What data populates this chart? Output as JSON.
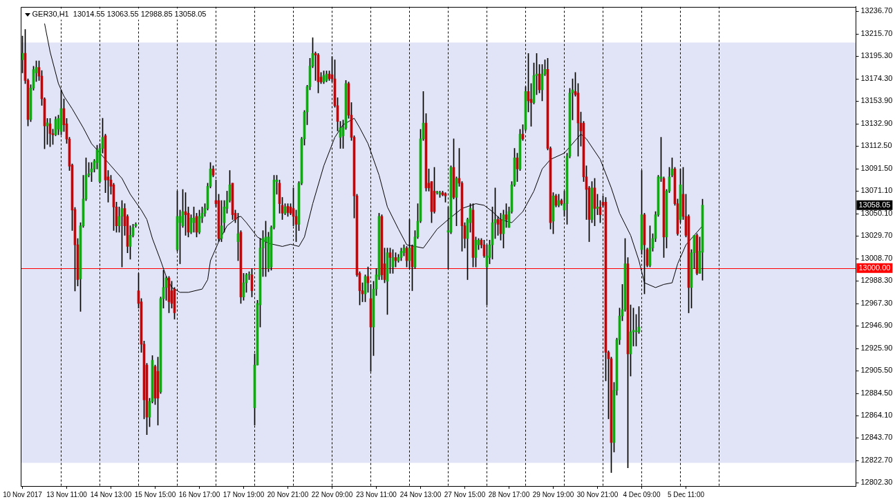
{
  "chart_data": {
    "type": "candlestick",
    "title": "GER30,H1  13014.55 13063.55 12988.85 13058.05",
    "categories": [
      "10 Nov 2017",
      null,
      null,
      null,
      null,
      null,
      null,
      null,
      null,
      null,
      null,
      null,
      null,
      null,
      null,
      null,
      "13 Nov 11:00",
      null,
      null,
      null,
      null,
      null,
      null,
      null,
      null,
      null,
      null,
      null,
      null,
      null,
      null,
      null,
      "14 Nov 13:00",
      null,
      null,
      null,
      null,
      null,
      null,
      null,
      null,
      null,
      null,
      null,
      null,
      null,
      null,
      null,
      "15 Nov 15:00",
      null,
      null,
      null,
      null,
      null,
      null,
      null,
      null,
      null,
      null,
      null,
      null,
      null,
      null,
      null,
      "16 Nov 17:00",
      null,
      null,
      null,
      null,
      null,
      null,
      null,
      null,
      null,
      null,
      null,
      null,
      null,
      null,
      null,
      "17 Nov 19:00",
      null,
      null,
      null,
      null,
      null,
      null,
      null,
      null,
      null,
      null,
      null,
      null,
      null,
      null,
      null,
      "20 Nov 21:00",
      null,
      null,
      null,
      null,
      null,
      null,
      null,
      null,
      null,
      null,
      null,
      null,
      null,
      null,
      null,
      "22 Nov 09:00",
      null,
      null,
      null,
      null,
      null,
      null,
      null,
      null,
      null,
      null,
      null,
      null,
      null,
      null,
      null,
      "23 Nov 11:00",
      null,
      null,
      null,
      null,
      null,
      null,
      null,
      null,
      null,
      null,
      null,
      null,
      null,
      null,
      null,
      "24 Nov 13:00",
      null,
      null,
      null,
      null,
      null,
      null,
      null,
      null,
      null,
      null,
      null,
      null,
      null,
      null,
      null,
      "27 Nov 15:00",
      null,
      null,
      null,
      null,
      null,
      null,
      null,
      null,
      null,
      null,
      null,
      null,
      null,
      null,
      null,
      "28 Nov 17:00",
      null,
      null,
      null,
      null,
      null,
      null,
      null,
      null,
      null,
      null,
      null,
      null,
      null,
      null,
      null,
      "29 Nov 19:00",
      null,
      null,
      null,
      null,
      null,
      null,
      null,
      null,
      null,
      null,
      null,
      null,
      null,
      null,
      null,
      "30 Nov 21:00",
      null,
      null,
      null,
      null,
      null,
      null,
      null,
      null,
      null,
      null,
      null,
      null,
      null,
      null,
      null,
      "4 Dec 09:00",
      null,
      null,
      null,
      null,
      null,
      null,
      null,
      null,
      null,
      null,
      null,
      null,
      null,
      null,
      null,
      "5 Dec 11:00",
      null,
      null,
      null,
      null,
      null,
      null,
      null,
      null,
      null,
      null,
      null,
      null,
      null,
      null,
      null,
      null,
      null,
      null,
      null,
      null,
      null,
      null,
      null,
      null,
      null,
      null,
      null,
      null,
      null,
      null,
      null,
      null,
      null,
      null,
      null,
      null,
      null,
      null,
      null,
      null,
      null,
      null,
      null,
      null,
      null,
      null,
      null,
      null,
      null,
      null,
      null,
      null,
      null,
      null,
      null,
      null,
      null,
      null,
      null,
      null,
      null
    ],
    "ohlc": [
      [
        13192,
        13214,
        13180,
        13198
      ],
      [
        13198,
        13220,
        13170,
        13173
      ],
      [
        13173,
        13174.5,
        13131,
        13137
      ],
      [
        13137,
        13169,
        13135,
        13166
      ],
      [
        13166,
        13186,
        13164,
        13183
      ],
      [
        13180,
        13191,
        13172,
        13185
      ],
      [
        13185,
        13191,
        13173,
        13177
      ],
      [
        13177,
        13182,
        13150,
        13156
      ],
      [
        13156,
        13157,
        13110,
        13131
      ],
      [
        13131,
        13138,
        13114,
        13134
      ],
      [
        13133,
        13138,
        13112,
        13124
      ],
      [
        13124,
        13128,
        13114,
        13123
      ],
      [
        13123,
        13139.5,
        13122,
        13137
      ],
      [
        13128,
        13141,
        13123,
        13138
      ],
      [
        13126,
        13164,
        13123,
        13147
      ],
      [
        13147,
        13156,
        13126,
        13132
      ],
      [
        13133,
        13138,
        13115,
        13119
      ],
      [
        13119,
        13120.6,
        13090,
        13094
      ],
      [
        13095,
        13096,
        13034.6,
        13053.5
      ],
      [
        13054,
        13056,
        12979,
        13021.5
      ],
      [
        13021.5,
        13027.3,
        12983.6,
        12989.4
      ],
      [
        12990,
        13041.9,
        12960.2,
        13039
      ],
      [
        13039,
        13085.6,
        13037.5,
        13063.7
      ],
      [
        13063.7,
        13101.6,
        13062.3,
        13085.6
      ],
      [
        13085.6,
        13097.3,
        13084.1,
        13087
      ],
      [
        13088.5,
        13097.3,
        13079.8,
        13091.4
      ],
      [
        13091.4,
        13100.2,
        13088.5,
        13098.7
      ],
      [
        13097.3,
        13113.3,
        13091.4,
        13108.9
      ],
      [
        13079.8,
        13114.7,
        13078.3,
        13110.4
      ],
      [
        13110.4,
        13138.1,
        13106,
        13120.6
      ],
      [
        13122,
        13123.5,
        13069.6,
        13081.2
      ],
      [
        13084.1,
        13090,
        13060.8,
        13081.2
      ],
      [
        13081.2,
        13085.6,
        13068.1,
        13075.4
      ],
      [
        13076.8,
        13078.3,
        13034.6,
        13056.4
      ],
      [
        13056.4,
        13060.8,
        13033.1,
        13039
      ],
      [
        13039,
        13056.4,
        13033.1,
        13047.7
      ],
      [
        13047.7,
        13062.3,
        13001.1,
        13055
      ],
      [
        13055,
        13059.4,
        13030.2,
        13039
      ],
      [
        13047.7,
        13049.2,
        13014.2,
        13020
      ],
      [
        13020,
        13039,
        13008.3,
        13030.2
      ],
      [
        13030.2,
        13040.4,
        13028.7,
        13037.5
      ],
      [
        13039,
        13041.9,
        13037.5,
        13040.4
      ],
      [
        12979.2,
        12995.2,
        12963.2,
        12967.5
      ],
      [
        12969,
        12971.9,
        12922.4,
        12929.9
      ],
      [
        12929.9,
        12932.8,
        12861.1,
        12878.6
      ],
      [
        12910.7,
        12912.2,
        12846.6,
        12862.6
      ],
      [
        12862.6,
        12880.1,
        12853.9,
        12877.2
      ],
      [
        12877.2,
        12919.4,
        12875.7,
        12915.1
      ],
      [
        12909.3,
        12910.7,
        12874.2,
        12880.1
      ],
      [
        12904.9,
        12918,
        12855.4,
        12880.1
      ],
      [
        12885.9,
        12973.4,
        12884.5,
        12971.9
      ],
      [
        12971.9,
        12998.1,
        12963.2,
        12982.1
      ],
      [
        12982.1,
        12992.3,
        12970.4,
        12990.9
      ],
      [
        12990.9,
        12992.3,
        12958.8,
        12969
      ],
      [
        12979.2,
        12987.9,
        12963.2,
        12967.5
      ],
      [
        12980.7,
        12982.1,
        12953,
        12958.8
      ],
      [
        13017.1,
        13071,
        13015.6,
        13047.7
      ],
      [
        13041.9,
        13053.5,
        13004,
        13047.7
      ],
      [
        13039,
        13072.5,
        13037.5,
        13052.1
      ],
      [
        13052.1,
        13069.6,
        13030.2,
        13049.2
      ],
      [
        13050.6,
        13056.4,
        13028.7,
        13033.1
      ],
      [
        13033.1,
        13049.2,
        13031.7,
        13046.2
      ],
      [
        13041.9,
        13056.4,
        13033.1,
        13046.2
      ],
      [
        13047.7,
        13050.6,
        13028.7,
        13033.1
      ],
      [
        13033.1,
        13053.5,
        13031.7,
        13047.7
      ],
      [
        13046.2,
        13056.4,
        13041.9,
        13050.6
      ],
      [
        13050.6,
        13059.4,
        13047.7,
        13055
      ],
      [
        13055,
        13078.3,
        13053.5,
        13075.4
      ],
      [
        13075.4,
        13097.3,
        13073.9,
        13091.4
      ],
      [
        13091.4,
        13094.3,
        13084.1,
        13085.6
      ],
      [
        13062.3,
        13081.2,
        13056.4,
        13059.4
      ],
      [
        13062.3,
        13068.1,
        13024.4,
        13027.3
      ],
      [
        13027.3,
        13062.3,
        13024.4,
        13039
      ],
      [
        13041.9,
        13062.3,
        13033.1,
        13056.4
      ],
      [
        13055,
        13071,
        13050.6,
        13062.3
      ],
      [
        13062.3,
        13090,
        13060.8,
        13076.8
      ],
      [
        13078.3,
        13078.3,
        13044.8,
        13049.2
      ],
      [
        13050.6,
        13053.5,
        13041.9,
        13044.8
      ],
      [
        13024.4,
        13050.6,
        13006.9,
        13031.7
      ],
      [
        13033.1,
        13034.6,
        12967.5,
        12973.4
      ],
      [
        12973.4,
        12995.2,
        12970.4,
        12986.5
      ],
      [
        12986.5,
        12995.2,
        12977.7,
        12993.8
      ],
      [
        12993.8,
        12996.7,
        12989.4,
        12993.8
      ],
      [
        12993.8,
        12999.6,
        12973.4,
        12979.2
      ],
      [
        12871.3,
        12920.9,
        12855.4,
        12910.7
      ],
      [
        12910.7,
        12970.4,
        12910.7,
        12967.5
      ],
      [
        12966.1,
        13027.3,
        12945.7,
        13018.5
      ],
      [
        13018.5,
        13034.6,
        12992.3,
        13027.3
      ],
      [
        13024.4,
        13043.3,
        12992.3,
        13028.7
      ],
      [
        12999.6,
        13033.1,
        12996.7,
        13028.7
      ],
      [
        13001.1,
        13039,
        12998.1,
        13037.5
      ],
      [
        13037.5,
        13085.6,
        13036,
        13081.2
      ],
      [
        13079.8,
        13085.6,
        13068.1,
        13081.2
      ],
      [
        13078.3,
        13081.2,
        13050.6,
        13059.4
      ],
      [
        13057.9,
        13065.2,
        13044.8,
        13050.6
      ],
      [
        13050.6,
        13059.4,
        13049.2,
        13056.4
      ],
      [
        13057,
        13059.4,
        13047.7,
        13051.2
      ],
      [
        13056.4,
        13059.4,
        13049.2,
        13050.6
      ],
      [
        13055,
        13073.9,
        13039,
        13047.7
      ],
      [
        13047.7,
        13053.5,
        13024.4,
        13040.4
      ],
      [
        13040.4,
        13079.8,
        13034.6,
        13078.3
      ],
      [
        13078.3,
        13120.6,
        13076.8,
        13119.1
      ],
      [
        13119.1,
        13145.3,
        13113.3,
        13143.9
      ],
      [
        13143.9,
        13168.6,
        13132.2,
        13167.2
      ],
      [
        13167.2,
        13193.4,
        13164.3,
        13186.2
      ],
      [
        13186.2,
        13212.4,
        13184.7,
        13197.8
      ],
      [
        13197.8,
        13199.3,
        13173,
        13196.4
      ],
      [
        13196.4,
        13197.8,
        13161.4,
        13171.6
      ],
      [
        13176,
        13180.3,
        13170.1,
        13171.6
      ],
      [
        13171.6,
        13181.8,
        13170.1,
        13177.4
      ],
      [
        13173,
        13181.8,
        13171.6,
        13178.9
      ],
      [
        13178.9,
        13181.8,
        13173,
        13174.5
      ],
      [
        13178.3,
        13194.9,
        13171.6,
        13174.5
      ],
      [
        13174.5,
        13192,
        13148.3,
        13149.7
      ],
      [
        13149.7,
        13157,
        13126.4,
        13135.2
      ],
      [
        13120.6,
        13135.2,
        13110.4,
        13129.3
      ],
      [
        13122,
        13136.6,
        13110.4,
        13129.3
      ],
      [
        13129.3,
        13173,
        13127.9,
        13170.1
      ],
      [
        13170.1,
        13171.6,
        13138.1,
        13141
      ],
      [
        13141,
        13152.6,
        13117.7,
        13120.6
      ],
      [
        13120.6,
        13122,
        13046.2,
        13066.6
      ],
      [
        13066.6,
        13068.1,
        12992.3,
        12993.8
      ],
      [
        12995.2,
        12996.7,
        12966.1,
        12979.2
      ],
      [
        12979.2,
        12986.5,
        12969,
        12976.3
      ],
      [
        12976.3,
        12993.8,
        12969,
        12992.3
      ],
      [
        12992.3,
        13001.1,
        12977.7,
        12986.5
      ],
      [
        12971.9,
        12985,
        12904.9,
        12945.7
      ],
      [
        12945.7,
        12987.9,
        12919.4,
        12980.7
      ],
      [
        12980.7,
        12999.6,
        12974.8,
        12993.8
      ],
      [
        12992.3,
        13050.6,
        12989.4,
        13047.7
      ],
      [
        13047.7,
        13049.2,
        12989.4,
        12993.8
      ],
      [
        13004,
        13018.5,
        12986.5,
        12989.4
      ],
      [
        12987.9,
        13018.5,
        12957.3,
        13014.2
      ],
      [
        13014.2,
        13018.5,
        12995.2,
        13009.8
      ],
      [
        13001.1,
        13017.1,
        12995.2,
        13009.8
      ],
      [
        13009.8,
        13014.2,
        13001.1,
        13006.9
      ],
      [
        13006.9,
        13012.7,
        13005.4,
        13009.8
      ],
      [
        13009.8,
        13018.5,
        13006.9,
        13015.6
      ],
      [
        13014.2,
        13021.5,
        13011.3,
        13018.5
      ],
      [
        13018.5,
        13020,
        13001.1,
        13006.9
      ],
      [
        13006.9,
        13044.8,
        12999.6,
        13018.5
      ],
      [
        13020,
        13021.5,
        12979.2,
        13001.1
      ],
      [
        13001.1,
        13034.6,
        12999.6,
        13028.7
      ],
      [
        13028.7,
        13059.4,
        13027.3,
        13043.3
      ],
      [
        13043.3,
        13127.9,
        13041.9,
        13119.1
      ],
      [
        13119.1,
        13162.8,
        13117.7,
        13133.7
      ],
      [
        13133.7,
        13142.4,
        13071,
        13073.9
      ],
      [
        13078.3,
        13091.4,
        13071,
        13073.9
      ],
      [
        13079.8,
        13079.8,
        13041.9,
        13052.1
      ],
      [
        13071,
        13092.9,
        13050.6,
        13052.1
      ],
      [
        13069.6,
        13071,
        13068.1,
        13070.4
      ],
      [
        13068.1,
        13071,
        13065.2,
        13069.3
      ],
      [
        13069.6,
        13071,
        13066.6,
        13067.5
      ],
      [
        13068.7,
        13069.6,
        13060.8,
        13066.6
      ],
      [
        13033.1,
        13056.4,
        12999.6,
        13034.6
      ],
      [
        13033.1,
        13094.3,
        13031.7,
        13092.9
      ],
      [
        13092.9,
        13119.1,
        13063.7,
        13065.2
      ],
      [
        13065.2,
        13084.1,
        13039,
        13082.7
      ],
      [
        13082.7,
        13110.4,
        13075.4,
        13078.3
      ],
      [
        13078.3,
        13079.8,
        13015.6,
        13039
      ],
      [
        13039,
        13041.9,
        13018.5,
        13027.3
      ],
      [
        13027.3,
        13046.2,
        12989.4,
        13044.8
      ],
      [
        13041.9,
        13059.4,
        13033.1,
        13055
      ],
      [
        13053.5,
        13059.4,
        13001.1,
        13009.8
      ],
      [
        13009.8,
        13028.7,
        13001.1,
        13025.8
      ],
      [
        13021.5,
        13027.3,
        13017.1,
        13025.8
      ],
      [
        13025.8,
        13027.3,
        13018.5,
        13021.5
      ],
      [
        13021.5,
        13025.8,
        13009.8,
        13011.3
      ],
      [
        13001.1,
        13021.5,
        12966.1,
        13011.3
      ],
      [
        13009.8,
        13025.8,
        13004,
        13021.5
      ],
      [
        13021.5,
        13056.4,
        13008.3,
        13041.9
      ],
      [
        13041.9,
        13073.9,
        13027.3,
        13044.8
      ],
      [
        13044.8,
        13047.7,
        13030.2,
        13040.4
      ],
      [
        13044.8,
        13050.6,
        13025.8,
        13031.7
      ],
      [
        13031.7,
        13053.5,
        13018.5,
        13049.2
      ],
      [
        13049.2,
        13059.4,
        13037.5,
        13044.8
      ],
      [
        13037.5,
        13056.4,
        13037.5,
        13052.1
      ],
      [
        13052.1,
        13079.8,
        13050.6,
        13076.8
      ],
      [
        13076.8,
        13110.4,
        13075.4,
        13101.6
      ],
      [
        13101.6,
        13106,
        13079.8,
        13091.4
      ],
      [
        13091.4,
        13127.9,
        13090,
        13123.5
      ],
      [
        13123.5,
        13132.2,
        13117.7,
        13119.1
      ],
      [
        13127.9,
        13167.2,
        13126.4,
        13162.8
      ],
      [
        13162.8,
        13197.8,
        13143.9,
        13154.1
      ],
      [
        13155.6,
        13170.1,
        13130.8,
        13152.6
      ],
      [
        13152.6,
        13189.1,
        13151.2,
        13177.4
      ],
      [
        13177.4,
        13197.8,
        13159.9,
        13178.9
      ],
      [
        13178.9,
        13187.6,
        13161.4,
        13164.3
      ],
      [
        13164.3,
        13187.6,
        13154.1,
        13178.9
      ],
      [
        13178.9,
        13192,
        13177.4,
        13183.2
      ],
      [
        13183.2,
        13193.4,
        13108.9,
        13110.4
      ],
      [
        13110.4,
        13111.8,
        13036,
        13041.9
      ],
      [
        13043.3,
        13069.6,
        13031.7,
        13066.6
      ],
      [
        13066.6,
        13068.1,
        13056.4,
        13057.9
      ],
      [
        13057.9,
        13068.1,
        13056.4,
        13062.3
      ],
      [
        13062.3,
        13063.7,
        13057.9,
        13059.4
      ],
      [
        13053.5,
        13071,
        13047.7,
        13059.4
      ],
      [
        13059.4,
        13106,
        13040.4,
        13103.1
      ],
      [
        13103.1,
        13165.7,
        13101.6,
        13161.4
      ],
      [
        13161.4,
        13174.5,
        13136.6,
        13164.3
      ],
      [
        13162.8,
        13180.3,
        13158.5,
        13159.9
      ],
      [
        13161.4,
        13170.1,
        13103.1,
        13133.7
      ],
      [
        13133.7,
        13143.9,
        13112.4,
        13126.4
      ],
      [
        13133.7,
        13135.2,
        13079.8,
        13084.1
      ],
      [
        13084.1,
        13094.3,
        13044.8,
        13072.5
      ],
      [
        13073.9,
        13075.4,
        13024.4,
        13044.8
      ],
      [
        13044.8,
        13079.8,
        13041.9,
        13073.9
      ],
      [
        13073.9,
        13082.7,
        13039,
        13055
      ],
      [
        13055,
        13068.1,
        13049.2,
        13056.4
      ],
      [
        13056.4,
        13062.3,
        13041.9,
        13049.2
      ],
      [
        13060.8,
        13066.6,
        13056.4,
        13057.9
      ],
      [
        13060.8,
        13065.2,
        12896.1,
        12922.4
      ],
      [
        12922.4,
        12923.8,
        12861.1,
        12916.5
      ],
      [
        12916.5,
        12918,
        12811.6,
        12839.3
      ],
      [
        12839.3,
        12894.7,
        12830.5,
        12887.4
      ],
      [
        12887.4,
        12935.5,
        12883,
        12934
      ],
      [
        12934,
        12963.2,
        12929.6,
        12955.9
      ],
      [
        12955.9,
        12985,
        12951.5,
        12961.7
      ],
      [
        12961.7,
        13027.3,
        12960.2,
        13004
      ],
      [
        13004,
        13009.8,
        12816,
        12920.9
      ],
      [
        12920.9,
        12966.1,
        12900.5,
        12941.3
      ],
      [
        12941.3,
        12963.2,
        12928.2,
        12942.8
      ],
      [
        12941.3,
        12957.3,
        12928.2,
        12942.2
      ],
      [
        12941.3,
        12964.6,
        12939.8,
        12945.7
      ],
      [
        13017.1,
        13090,
        13012.7,
        13049.2
      ],
      [
        13049.2,
        13050.6,
        12976.3,
        13021.5
      ],
      [
        13017.1,
        13018.5,
        13001.1,
        13002.5
      ],
      [
        13002.5,
        13039,
        13001.1,
        13018.5
      ],
      [
        13018.5,
        13031.7,
        13015.6,
        13027.3
      ],
      [
        13027.3,
        13052.1,
        13024.4,
        13049.2
      ],
      [
        13049.2,
        13085.6,
        13047.7,
        13084.1
      ],
      [
        13082.7,
        13120.6,
        13079.8,
        13084.1
      ],
      [
        13082.7,
        13084.1,
        13009.8,
        13028.7
      ],
      [
        13028.7,
        13072.5,
        13018.5,
        13071
      ],
      [
        13071,
        13092.9,
        13069.6,
        13084.1
      ],
      [
        13085.6,
        13101.6,
        13084.1,
        13091.4
      ],
      [
        13091.4,
        13092.9,
        13057.9,
        13059.4
      ],
      [
        13059.4,
        13063.7,
        13030.2,
        13031.7
      ],
      [
        13044.8,
        13091.4,
        13041.9,
        13076.8
      ],
      [
        13068.1,
        13092.9,
        13044.8,
        13047.7
      ],
      [
        13047.7,
        13068.1,
        13028.7,
        13030.2
      ],
      [
        13047.7,
        13049.2,
        12958.8,
        12982.1
      ],
      [
        12982.1,
        13017.1,
        12963.2,
        13014.2
      ],
      [
        13014.2,
        13030.2,
        12999.6,
        13030.2
      ],
      [
        13030.2,
        13031.7,
        12993.8,
        12995.2
      ],
      [
        12995.2,
        13028.7,
        12995.2,
        13015.6
      ],
      [
        13014.55,
        13063.55,
        12988.85,
        13058.05
      ],
      null,
      null,
      null,
      null,
      null,
      null,
      null,
      null,
      null,
      null,
      null,
      null,
      null,
      null,
      null,
      null,
      null,
      null,
      null,
      null,
      null,
      null,
      null,
      null,
      null,
      null,
      null,
      null,
      null,
      null,
      null,
      null,
      null,
      null,
      null,
      null,
      null,
      null,
      null,
      null,
      null,
      null,
      null,
      null,
      null,
      null,
      null,
      null,
      null,
      null,
      null,
      null,
      null,
      null,
      null
    ],
    "series": [
      {
        "type": "line",
        "color": "#000000",
        "values": [
          null,
          null,
          null,
          null,
          null,
          null,
          null,
          null,
          13225.4,
          null,
          13199.3,
          null,
          null,
          13170.1,
          null,
          13158.5,
          null,
          null,
          13146.8,
          null,
          null,
          null,
          13129.3,
          null,
          null,
          13114.7,
          null,
          null,
          null,
          13103.1,
          null,
          null,
          13094.3,
          null,
          null,
          null,
          13082.7,
          null,
          null,
          13068.1,
          null,
          null,
          null,
          13053.5,
          null,
          13044.8,
          null,
          13027.3,
          null,
          null,
          13006.9,
          null,
          12992.3,
          null,
          12982.1,
          null,
          null,
          12977.7,
          null,
          null,
          12977.7,
          null,
          null,
          null,
          null,
          12980.7,
          null,
          12989.4,
          13006.9,
          null,
          null,
          13024.4,
          null,
          null,
          13039,
          null,
          null,
          null,
          13047.1,
          13047.7,
          null,
          13041.9,
          null,
          null,
          null,
          13028.7,
          null,
          null,
          null,
          13022.9,
          null,
          null,
          null,
          null,
          13020,
          null,
          null,
          13022,
          null,
          null,
          13020,
          null,
          13028.7,
          null,
          null,
          13059.4,
          null,
          null,
          null,
          13094.3,
          null,
          null,
          null,
          13120.6,
          null,
          null,
          13132.2,
          null,
          null,
          null,
          13138.1,
          null,
          13129.3,
          null,
          null,
          13114.7,
          null,
          null,
          null,
          13085.6,
          null,
          null,
          13056.4,
          null,
          null,
          null,
          13036,
          null,
          null,
          13021.5,
          null,
          null,
          null,
          null,
          null,
          13018.5,
          null,
          null,
          null,
          null,
          13036,
          null,
          null,
          null,
          13044.8,
          null,
          null,
          null,
          null,
          13055,
          null,
          null,
          null,
          null,
          13059.4,
          null,
          null,
          13057.9,
          null,
          null,
          13052.1,
          null,
          null,
          13044.8,
          null,
          null,
          null,
          13041.9,
          null,
          null,
          null,
          13052.1,
          null,
          null,
          null,
          13071,
          null,
          null,
          13091.4,
          null,
          null,
          13100.2,
          null,
          null,
          null,
          null,
          13106,
          null,
          null,
          null,
          13117.7,
          null,
          13123.5,
          null,
          13119.1,
          null,
          null,
          null,
          null,
          13100.2,
          null,
          null,
          null,
          13073.9,
          null,
          null,
          13050.6,
          null,
          null,
          null,
          13030.2,
          null,
          null,
          13006.9,
          null,
          12986.5,
          null,
          null,
          null,
          12982.1,
          null,
          null,
          12985,
          null,
          null,
          12986.5,
          null,
          13004,
          null,
          null,
          13021.5,
          null,
          null,
          null,
          null,
          null,
          13039,
          null,
          null,
          null,
          null,
          null,
          null,
          null,
          null,
          null,
          null,
          null,
          null,
          null,
          null,
          null,
          null,
          null,
          null,
          null,
          null,
          null,
          null,
          null,
          null,
          null,
          null,
          null,
          null,
          null,
          null,
          null,
          null,
          null,
          null,
          null,
          null,
          null,
          null,
          null,
          null,
          null,
          null,
          null,
          null,
          null,
          null,
          null,
          null,
          null,
          null,
          null,
          null,
          null,
          null,
          null
        ]
      }
    ],
    "ylim": [
      12799.2,
      13241
    ],
    "yticks": [
      {
        "value": 12802.3,
        "label": "12802.30"
      },
      {
        "value": 12822.7,
        "label": "12822.70"
      },
      {
        "value": 12843.7,
        "label": "12843.70"
      },
      {
        "value": 12864.1,
        "label": "12864.10"
      },
      {
        "value": 12884.5,
        "label": "12884.50"
      },
      {
        "value": 12905.5,
        "label": "12905.50"
      },
      {
        "value": 12925.9,
        "label": "12925.90"
      },
      {
        "value": 12946.9,
        "label": "12946.90"
      },
      {
        "value": 12967.3,
        "label": "12967.30"
      },
      {
        "value": 12988.3,
        "label": "12988.30"
      },
      {
        "value": 13008.7,
        "label": "13008.70"
      },
      {
        "value": 13029.7,
        "label": "13029.70"
      },
      {
        "value": 13050.1,
        "label": "13050.10"
      },
      {
        "value": 13071.1,
        "label": "13071.10"
      },
      {
        "value": 13091.5,
        "label": "13091.50"
      },
      {
        "value": 13112.5,
        "label": "13112.50"
      },
      {
        "value": 13132.9,
        "label": "13132.90"
      },
      {
        "value": 13153.9,
        "label": "13153.90"
      },
      {
        "value": 13174.3,
        "label": "13174.30"
      },
      {
        "value": 13195.3,
        "label": "13195.30"
      },
      {
        "value": 13215.7,
        "label": "13215.70"
      },
      {
        "value": 13236.7,
        "label": "13236.70"
      }
    ],
    "bands": [
      {
        "axis": "y",
        "from": 12820.5,
        "to": 13208,
        "color": "#e1e3f7"
      }
    ],
    "ref_lines": [
      {
        "axis": "y",
        "value": 13000,
        "label": "13000.00",
        "color": "#ff0000"
      }
    ],
    "annotations": [
      "13058.05"
    ]
  }
}
